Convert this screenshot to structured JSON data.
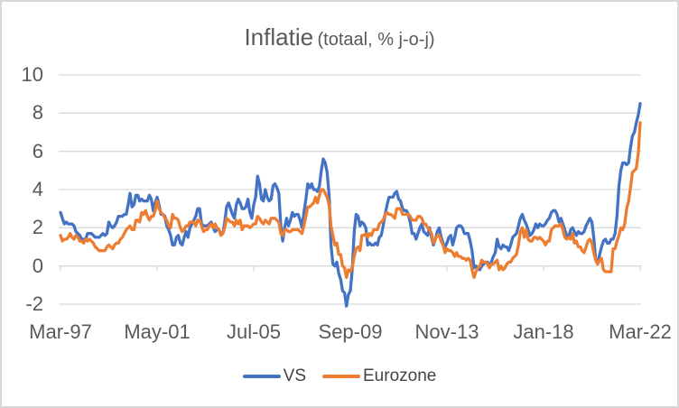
{
  "chart_data": {
    "type": "line",
    "title": "Inflatie",
    "title_suffix": "(totaal, % j-o-j)",
    "x_tick_labels": [
      "Mar-97",
      "May-01",
      "Jul-05",
      "Sep-09",
      "Nov-13",
      "Jan-18",
      "Mar-22"
    ],
    "y_ticks": [
      10,
      8,
      6,
      4,
      2,
      0,
      -2
    ],
    "ylim": [
      -2,
      10
    ],
    "x_start": "Mar-97",
    "x_end": "Mar-22",
    "x_frequency": "monthly",
    "grid": true,
    "grid_color": "#d9d9d9",
    "text_color": "#595959",
    "legend_position": "bottom",
    "series": [
      {
        "name": "VS",
        "color": "#4472c4",
        "values": [
          2.8,
          2.5,
          2.2,
          2.3,
          2.2,
          2.2,
          2.2,
          2.1,
          1.8,
          1.7,
          1.6,
          1.4,
          1.4,
          1.4,
          1.7,
          1.7,
          1.7,
          1.6,
          1.5,
          1.5,
          1.5,
          1.6,
          1.7,
          1.6,
          1.7,
          2.3,
          2.1,
          2.0,
          2.1,
          2.3,
          2.6,
          2.6,
          2.6,
          2.7,
          2.7,
          3.2,
          3.8,
          3.1,
          3.2,
          3.7,
          3.7,
          3.4,
          3.5,
          3.4,
          3.4,
          3.4,
          3.7,
          3.5,
          2.9,
          3.3,
          3.6,
          3.2,
          2.7,
          2.7,
          2.6,
          2.1,
          1.9,
          1.6,
          1.1,
          1.1,
          1.5,
          1.6,
          1.2,
          1.1,
          1.5,
          1.8,
          1.5,
          2.0,
          2.2,
          2.4,
          2.6,
          3.0,
          3.0,
          2.2,
          2.1,
          2.1,
          2.1,
          2.2,
          2.3,
          2.0,
          1.8,
          1.9,
          1.9,
          1.7,
          1.7,
          2.3,
          3.1,
          3.3,
          3.0,
          2.7,
          2.5,
          3.2,
          3.5,
          3.3,
          3.0,
          3.0,
          3.1,
          3.5,
          2.8,
          2.5,
          3.2,
          3.6,
          4.7,
          4.3,
          3.5,
          3.4,
          4.0,
          3.6,
          3.4,
          3.5,
          4.2,
          4.3,
          4.1,
          3.8,
          2.1,
          1.3,
          2.0,
          2.5,
          2.1,
          2.4,
          2.8,
          2.6,
          2.7,
          2.7,
          2.4,
          2.0,
          2.8,
          3.5,
          4.3,
          4.1,
          4.3,
          4.0,
          4.0,
          3.9,
          4.2,
          5.0,
          5.6,
          5.4,
          4.9,
          3.7,
          1.1,
          0.1,
          0.0,
          0.2,
          -0.4,
          -0.7,
          -1.3,
          -1.4,
          -2.1,
          -1.5,
          -1.3,
          -0.2,
          1.8,
          2.7,
          2.6,
          2.1,
          2.3,
          2.2,
          2.0,
          1.1,
          1.2,
          1.1,
          1.1,
          1.2,
          1.1,
          1.5,
          1.6,
          2.1,
          2.7,
          3.2,
          3.6,
          3.6,
          3.6,
          3.8,
          3.9,
          3.5,
          3.4,
          3.0,
          2.9,
          2.9,
          2.7,
          2.3,
          1.7,
          1.7,
          1.4,
          1.7,
          2.0,
          2.2,
          1.8,
          1.7,
          1.6,
          2.0,
          1.5,
          1.1,
          1.4,
          1.8,
          2.0,
          1.5,
          1.2,
          1.0,
          1.2,
          1.5,
          1.6,
          1.1,
          1.5,
          2.0,
          2.1,
          2.1,
          2.0,
          1.7,
          1.7,
          1.7,
          1.3,
          0.8,
          -0.1,
          0.0,
          -0.1,
          -0.2,
          0.0,
          0.1,
          0.2,
          0.2,
          0.0,
          0.2,
          0.5,
          0.7,
          1.4,
          1.0,
          0.9,
          1.1,
          1.0,
          1.0,
          0.8,
          1.1,
          1.5,
          1.6,
          1.7,
          2.1,
          2.5,
          2.7,
          2.4,
          2.2,
          1.9,
          1.6,
          1.7,
          1.9,
          2.2,
          2.0,
          2.2,
          2.1,
          2.1,
          2.2,
          2.4,
          2.5,
          2.8,
          2.9,
          2.9,
          2.7,
          2.3,
          2.5,
          2.2,
          1.9,
          1.6,
          1.5,
          1.9,
          2.0,
          1.8,
          1.6,
          1.8,
          1.7,
          1.7,
          1.8,
          2.1,
          2.3,
          2.5,
          2.3,
          1.5,
          0.3,
          0.1,
          0.6,
          1.0,
          1.3,
          1.4,
          1.2,
          1.2,
          1.4,
          1.4,
          1.7,
          2.6,
          4.2,
          5.0,
          5.4,
          5.4,
          5.3,
          5.4,
          6.2,
          6.8,
          7.0,
          7.5,
          7.9,
          8.5
        ]
      },
      {
        "name": "Eurozone",
        "color": "#ed7d31",
        "values": [
          1.6,
          1.3,
          1.4,
          1.4,
          1.5,
          1.7,
          1.5,
          1.4,
          1.6,
          1.5,
          1.3,
          1.3,
          1.2,
          1.4,
          1.3,
          1.4,
          1.3,
          1.2,
          1.0,
          0.9,
          0.8,
          0.8,
          0.8,
          0.8,
          1.0,
          1.1,
          1.0,
          0.9,
          1.1,
          1.2,
          1.2,
          1.4,
          1.5,
          1.7,
          1.9,
          2.0,
          2.1,
          1.9,
          1.9,
          2.4,
          2.4,
          2.3,
          2.8,
          2.7,
          2.9,
          2.6,
          2.4,
          2.6,
          2.6,
          2.9,
          3.4,
          3.0,
          2.8,
          2.7,
          2.5,
          2.4,
          2.1,
          2.0,
          2.7,
          2.5,
          2.5,
          2.4,
          2.0,
          1.8,
          1.9,
          2.1,
          2.1,
          2.3,
          2.3,
          2.3,
          2.1,
          2.4,
          2.4,
          2.1,
          1.8,
          1.9,
          1.9,
          2.1,
          2.2,
          2.0,
          2.2,
          2.0,
          1.9,
          1.6,
          1.7,
          2.0,
          2.5,
          2.4,
          2.3,
          2.3,
          2.1,
          2.4,
          2.2,
          2.4,
          1.9,
          2.1,
          2.1,
          2.1,
          2.0,
          2.1,
          2.2,
          2.2,
          2.6,
          2.5,
          2.3,
          2.2,
          2.4,
          2.3,
          2.2,
          2.5,
          2.5,
          2.5,
          2.4,
          2.3,
          1.7,
          1.6,
          1.9,
          1.9,
          1.8,
          1.8,
          1.9,
          1.9,
          1.9,
          1.9,
          1.8,
          1.7,
          2.1,
          2.6,
          3.1,
          3.1,
          3.2,
          3.3,
          3.6,
          3.3,
          3.7,
          4.0,
          4.0,
          3.8,
          3.6,
          3.2,
          2.1,
          1.6,
          1.1,
          1.2,
          0.6,
          0.6,
          0.0,
          -0.1,
          -0.6,
          -0.2,
          -0.3,
          -0.1,
          0.5,
          0.9,
          1.0,
          0.8,
          1.6,
          1.6,
          1.7,
          1.5,
          1.7,
          1.6,
          1.9,
          1.9,
          1.9,
          2.2,
          2.3,
          2.4,
          2.7,
          2.8,
          2.7,
          2.7,
          2.6,
          2.5,
          3.0,
          3.0,
          3.0,
          2.7,
          2.7,
          2.7,
          2.7,
          2.6,
          2.4,
          2.4,
          2.4,
          2.6,
          2.6,
          2.5,
          2.2,
          2.2,
          2.0,
          1.9,
          1.7,
          1.2,
          1.4,
          1.6,
          1.6,
          1.3,
          1.1,
          0.7,
          0.9,
          0.8,
          0.8,
          0.7,
          0.5,
          0.7,
          0.5,
          0.5,
          0.4,
          0.4,
          0.3,
          0.4,
          0.3,
          -0.2,
          -0.6,
          -0.3,
          -0.1,
          0.0,
          0.3,
          0.2,
          0.2,
          0.1,
          -0.1,
          0.1,
          0.1,
          0.2,
          0.3,
          -0.2,
          0.0,
          -0.2,
          -0.1,
          0.1,
          0.2,
          0.2,
          0.4,
          0.5,
          0.6,
          1.1,
          1.8,
          2.0,
          1.5,
          1.9,
          1.4,
          1.3,
          1.3,
          1.5,
          1.5,
          1.4,
          1.5,
          1.4,
          1.3,
          1.1,
          1.3,
          1.3,
          1.9,
          2.0,
          2.1,
          2.1,
          2.1,
          2.2,
          1.9,
          1.5,
          1.4,
          1.5,
          1.4,
          1.7,
          1.2,
          1.3,
          1.0,
          1.0,
          0.8,
          0.7,
          1.0,
          1.3,
          1.4,
          1.2,
          0.7,
          0.3,
          0.1,
          0.3,
          0.4,
          -0.2,
          -0.3,
          -0.3,
          -0.3,
          -0.3,
          0.9,
          0.9,
          1.3,
          1.6,
          2.0,
          1.9,
          2.2,
          3.0,
          3.4,
          4.1,
          4.9,
          5.0,
          5.1,
          5.9,
          7.5
        ]
      }
    ]
  }
}
